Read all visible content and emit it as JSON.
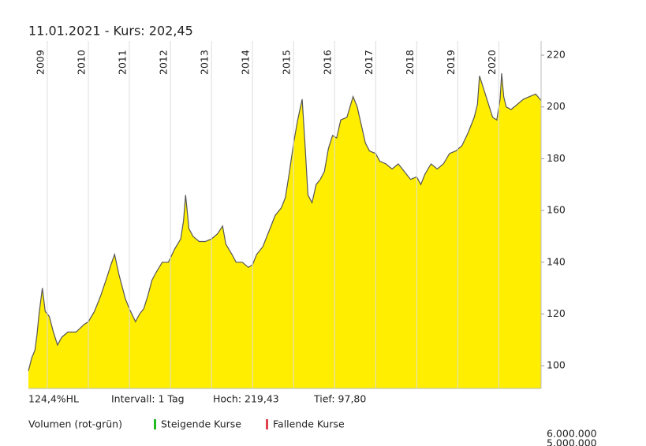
{
  "header": {
    "title": "11.01.2021  -  Kurs: 202,45"
  },
  "chart_data": {
    "type": "area",
    "x": [
      2008.54,
      2008.62,
      2008.7,
      2008.75,
      2008.8,
      2008.88,
      2008.95,
      2009.05,
      2009.15,
      2009.25,
      2009.35,
      2009.5,
      2009.7,
      2009.9,
      2010.0,
      2010.15,
      2010.3,
      2010.45,
      2010.55,
      2010.64,
      2010.75,
      2010.9,
      2011.0,
      2011.15,
      2011.25,
      2011.35,
      2011.45,
      2011.55,
      2011.65,
      2011.8,
      2011.95,
      2012.1,
      2012.25,
      2012.32,
      2012.37,
      2012.45,
      2012.55,
      2012.7,
      2012.85,
      2013.0,
      2013.15,
      2013.27,
      2013.35,
      2013.5,
      2013.6,
      2013.75,
      2013.9,
      2014.0,
      2014.1,
      2014.25,
      2014.4,
      2014.55,
      2014.7,
      2014.8,
      2014.9,
      2015.0,
      2015.1,
      2015.21,
      2015.28,
      2015.35,
      2015.45,
      2015.55,
      2015.65,
      2015.75,
      2015.85,
      2015.95,
      2016.05,
      2016.15,
      2016.3,
      2016.45,
      2016.55,
      2016.65,
      2016.75,
      2016.85,
      2017.0,
      2017.1,
      2017.25,
      2017.4,
      2017.55,
      2017.7,
      2017.85,
      2018.0,
      2018.1,
      2018.2,
      2018.35,
      2018.5,
      2018.65,
      2018.8,
      2018.95,
      2019.1,
      2019.25,
      2019.4,
      2019.48,
      2019.53,
      2019.65,
      2019.75,
      2019.85,
      2019.95,
      2020.03,
      2020.07,
      2020.12,
      2020.18,
      2020.3,
      2020.45,
      2020.6,
      2020.75,
      2020.9,
      2021.03
    ],
    "values": [
      98,
      103,
      106,
      112,
      120,
      130,
      121,
      119,
      113,
      108,
      111,
      113,
      113,
      116,
      117,
      121,
      127,
      134,
      139,
      143,
      135,
      126,
      122,
      117,
      120,
      122,
      127,
      133,
      136,
      140,
      140,
      145,
      149,
      156,
      166,
      153,
      150,
      148,
      148,
      149,
      151,
      154,
      147,
      143,
      140,
      140,
      138,
      139,
      143,
      146,
      152,
      158,
      161,
      165,
      175,
      186,
      195,
      203,
      185,
      166,
      163,
      170,
      172,
      175,
      184,
      189,
      188,
      195,
      196,
      204,
      200,
      193,
      186,
      183,
      182,
      179,
      178,
      176,
      178,
      175,
      172,
      173,
      170,
      174,
      178,
      176,
      178,
      182,
      183,
      185,
      190,
      196,
      201,
      212,
      206,
      201,
      196,
      195,
      203,
      213,
      204,
      200,
      199,
      201,
      203,
      204,
      205,
      202.45
    ],
    "color": "#ffee00",
    "line_color": "#555555",
    "xlim": [
      2008.54,
      2021.03
    ],
    "xticks": [
      2009,
      2010,
      2011,
      2012,
      2013,
      2014,
      2015,
      2016,
      2017,
      2018,
      2019,
      2020
    ],
    "ylim": [
      91.2,
      225.5
    ],
    "yticks": [
      100,
      120,
      140,
      160,
      180,
      200,
      220
    ],
    "grid": true
  },
  "footer": {
    "range": "124,4%HL",
    "interval": "Intervall: 1 Tag",
    "high": "Hoch: 219,43",
    "low": "Tief: 97,80"
  },
  "volume": {
    "title": "Volumen (rot-grün)",
    "legend": [
      {
        "name": "Steigende Kurse",
        "color": "#22bb22"
      },
      {
        "name": "Fallende Kurse",
        "color": "#e04050"
      }
    ],
    "axis_labels": [
      "6.000.000",
      "5.000.000"
    ]
  }
}
